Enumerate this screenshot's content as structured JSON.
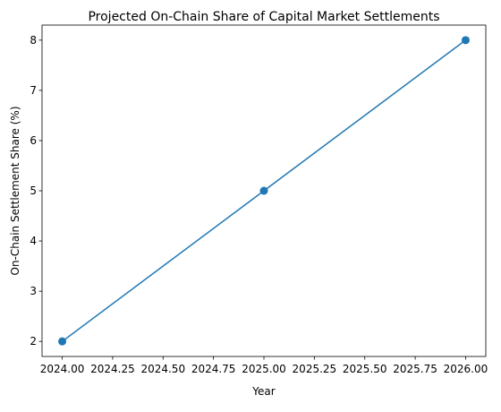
{
  "chart_data": {
    "type": "line",
    "title": "Projected On-Chain Share of Capital Market Settlements",
    "xlabel": "Year",
    "ylabel": "On-Chain Settlement Share (%)",
    "x": [
      2024,
      2025,
      2026
    ],
    "series": [
      {
        "values": [
          2,
          5,
          8
        ]
      }
    ],
    "xlim": [
      2023.9,
      2026.1
    ],
    "ylim": [
      1.7,
      8.3
    ],
    "xticks": [
      2024.0,
      2024.25,
      2024.5,
      2024.75,
      2025.0,
      2025.25,
      2025.5,
      2025.75,
      2026.0
    ],
    "xtick_labels": [
      "2024.00",
      "2024.25",
      "2024.50",
      "2024.75",
      "2025.00",
      "2025.25",
      "2025.50",
      "2025.75",
      "2026.00"
    ],
    "yticks": [
      2,
      3,
      4,
      5,
      6,
      7,
      8
    ],
    "ytick_labels": [
      "2",
      "3",
      "4",
      "5",
      "6",
      "7",
      "8"
    ],
    "grid": false,
    "line_color": "#1f77b4",
    "marker": "circle"
  }
}
